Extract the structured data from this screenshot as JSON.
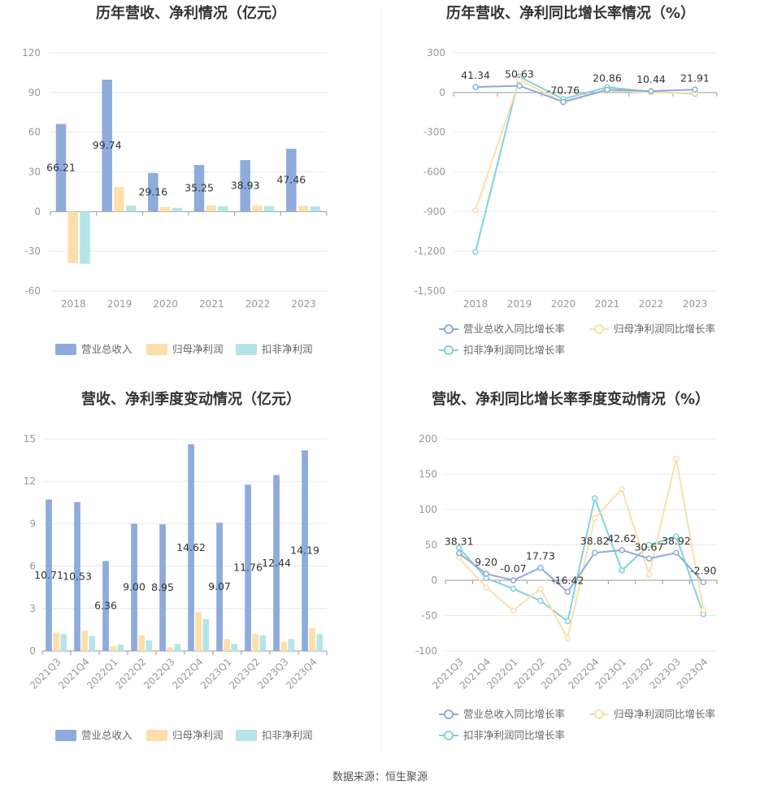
{
  "source": "数据来源：恒生聚源",
  "colors": {
    "revenue": "#8eabdb",
    "net_profit": "#fddfaa",
    "deducted": "#7fd3d8",
    "deducted_bar": "#b5e5e7",
    "grid": "#e8e8e8",
    "axis": "#999999"
  },
  "chart_data": [
    {
      "id": "annual_amount",
      "type": "bar",
      "title": "历年营收、净利情况（亿元）",
      "categories": [
        "2018",
        "2019",
        "2020",
        "2021",
        "2022",
        "2023"
      ],
      "ylim": [
        -60,
        120
      ],
      "yticks": [
        120,
        90,
        60,
        30,
        0,
        -30,
        -60
      ],
      "grid": true,
      "legend_position": "bottom",
      "series": [
        {
          "name": "营业总收入",
          "values": [
            66.21,
            99.74,
            29.16,
            35.25,
            38.93,
            47.46
          ],
          "labels": [
            "66.21",
            "99.74",
            "29.16",
            "35.25",
            "38.93",
            "47.46"
          ]
        },
        {
          "name": "归母净利润",
          "values": [
            -39.0,
            18.5,
            3.5,
            4.5,
            4.5,
            4.4
          ]
        },
        {
          "name": "扣非净利润",
          "values": [
            -39.5,
            4.5,
            2.8,
            4.0,
            4.2,
            3.9
          ]
        }
      ]
    },
    {
      "id": "annual_growth",
      "type": "line",
      "title": "历年营收、净利同比增长率情况（%）",
      "categories": [
        "2018",
        "2019",
        "2020",
        "2021",
        "2022",
        "2023"
      ],
      "ylim": [
        -1500,
        300
      ],
      "yticks": [
        300,
        0,
        -300,
        -600,
        -900,
        -1200,
        -1500
      ],
      "ytick_labels": [
        "300",
        "0",
        "-300",
        "-600",
        "-900",
        "-1,200",
        "-1,500"
      ],
      "grid": true,
      "legend_position": "bottom",
      "series": [
        {
          "name": "营业总收入同比增长率",
          "values": [
            41.34,
            50.63,
            -70.76,
            20.86,
            10.44,
            21.91
          ],
          "labels": [
            "41.34",
            "50.63",
            "-70.76",
            "20.86",
            "10.44",
            "21.91"
          ]
        },
        {
          "name": "归母净利润同比增长率",
          "values": [
            -890,
            95,
            -75,
            15,
            0,
            -5
          ]
        },
        {
          "name": "扣非净利润同比增长率",
          "values": [
            -1205,
            120,
            -50,
            40,
            5,
            -10
          ]
        }
      ]
    },
    {
      "id": "quarterly_amount",
      "type": "bar",
      "title": "营收、净利季度变动情况（亿元）",
      "categories": [
        "2021Q3",
        "2021Q4",
        "2022Q1",
        "2022Q2",
        "2022Q3",
        "2022Q4",
        "2023Q1",
        "2023Q2",
        "2023Q3",
        "2023Q4"
      ],
      "ylim": [
        0,
        15
      ],
      "yticks": [
        15,
        12,
        9,
        6,
        3,
        0
      ],
      "grid": true,
      "legend_position": "bottom",
      "series": [
        {
          "name": "营业总收入",
          "values": [
            10.71,
            10.53,
            6.36,
            9.0,
            8.95,
            14.62,
            9.07,
            11.76,
            12.44,
            14.19
          ],
          "labels": [
            "10.71",
            "10.53",
            "6.36",
            "9.00",
            "8.95",
            "14.62",
            "9.07",
            "11.76",
            "12.44",
            "14.19"
          ]
        },
        {
          "name": "归母净利润",
          "values": [
            1.3,
            1.45,
            0.35,
            1.1,
            0.25,
            2.75,
            0.85,
            1.2,
            0.65,
            1.6
          ]
        },
        {
          "name": "扣非净利润",
          "values": [
            1.2,
            1.05,
            0.45,
            0.75,
            0.5,
            2.25,
            0.5,
            1.1,
            0.85,
            1.2
          ]
        }
      ]
    },
    {
      "id": "quarterly_growth",
      "type": "line",
      "title": "营收、净利同比增长率季度变动情况（%）",
      "categories": [
        "2021Q3",
        "2021Q4",
        "2022Q1",
        "2022Q2",
        "2022Q3",
        "2022Q4",
        "2023Q1",
        "2023Q2",
        "2023Q3",
        "2023Q4"
      ],
      "ylim": [
        -100,
        200
      ],
      "yticks": [
        200,
        150,
        100,
        50,
        0,
        -50,
        -100
      ],
      "grid": true,
      "legend_position": "bottom",
      "series": [
        {
          "name": "营业总收入同比增长率",
          "values": [
            38.31,
            9.2,
            -0.07,
            17.73,
            -16.42,
            38.82,
            42.62,
            30.67,
            38.92,
            -2.9
          ],
          "labels": [
            "38.31",
            "9.20",
            "-0.07",
            "17.73",
            "-16.42",
            "38.82",
            "42.62",
            "30.67",
            "38.92",
            "-2.90"
          ]
        },
        {
          "name": "归母净利润同比增长率",
          "values": [
            32,
            -10,
            -43,
            -12,
            -82,
            88,
            129,
            8,
            172,
            -42
          ]
        },
        {
          "name": "扣非净利润同比增长率",
          "values": [
            46,
            3,
            -12,
            -29,
            -58,
            116,
            14,
            50,
            62,
            -48
          ]
        }
      ]
    }
  ]
}
